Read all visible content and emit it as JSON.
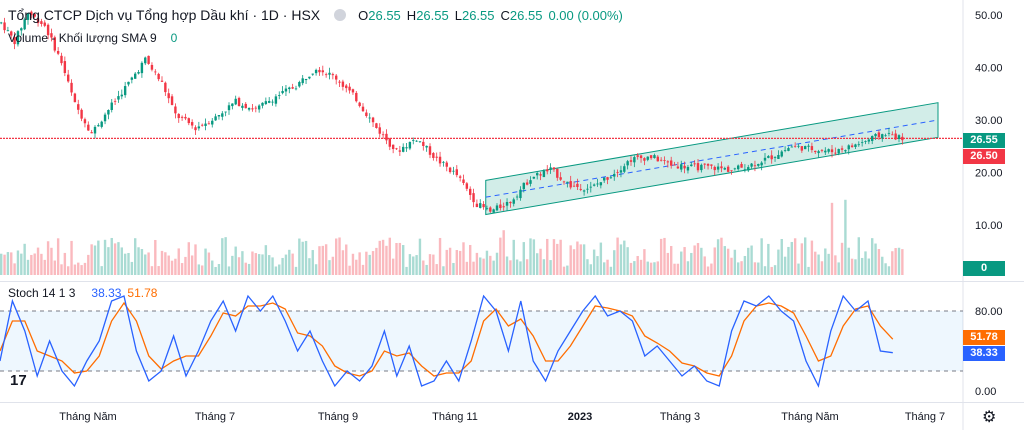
{
  "header": {
    "title": "Tổng CTCP Dịch vụ Tổng hợp Dầu khí · 1D · HSX",
    "ohlc": [
      {
        "k": "O",
        "v": "26.55"
      },
      {
        "k": "H",
        "v": "26.55"
      },
      {
        "k": "L",
        "v": "26.55"
      },
      {
        "k": "C",
        "v": "26.55"
      }
    ],
    "change": "0.00 (0.00%)"
  },
  "volume_legend": {
    "label": "Volume - Khối lượng SMA 9",
    "value": "0"
  },
  "stoch_legend": {
    "label": "Stoch 14 1 3",
    "k_value": "38.33",
    "d_value": "51.78"
  },
  "price_tags": {
    "last": "26.55",
    "hline": "26.50",
    "volume": "0",
    "stoch_d": "51.78",
    "stoch_k": "38.33"
  },
  "colors": {
    "up": "#089981",
    "down": "#f23645",
    "k_line": "#2962ff",
    "d_line": "#ff6d00",
    "channel": "#089981",
    "hline": "#f23645"
  },
  "icons": {
    "logo": "tradingview-logo-icon",
    "settings": "gear-icon",
    "visibility": "eye-icon"
  },
  "chart_data": {
    "type": "candlestick",
    "x_ticks": [
      "Tháng Năm",
      "Tháng 7",
      "Tháng 9",
      "Tháng 11",
      "2023",
      "Tháng 3",
      "Tháng Năm",
      "Tháng 7"
    ],
    "price_axis": {
      "ticks": [
        "50.00",
        "40.00",
        "30.00",
        "20.00",
        "10.00"
      ],
      "range": [
        6,
        54
      ]
    },
    "stoch_axis": {
      "ticks": [
        "80.00",
        "0.00"
      ],
      "range": [
        -5,
        110
      ],
      "band": [
        20,
        80
      ]
    },
    "horizontal_line": 26.5,
    "trend_channel": {
      "upper": [
        [
          18.5,
          33.3
        ]
      ],
      "lower": [
        [
          12.0,
          26.7
        ]
      ],
      "mid": [
        [
          15.3,
          30.0
        ]
      ]
    },
    "price_path": [
      [
        0,
        48.5
      ],
      [
        4,
        45.0
      ],
      [
        8,
        50.5
      ],
      [
        13,
        48.0
      ],
      [
        18,
        41.0
      ],
      [
        22,
        33.0
      ],
      [
        27,
        27.5
      ],
      [
        32,
        32.0
      ],
      [
        38,
        37.0
      ],
      [
        43,
        41.5
      ],
      [
        48,
        37.0
      ],
      [
        52,
        31.0
      ],
      [
        58,
        28.5
      ],
      [
        64,
        30.5
      ],
      [
        70,
        33.5
      ],
      [
        76,
        32.0
      ],
      [
        82,
        34.5
      ],
      [
        88,
        36.5
      ],
      [
        94,
        40.0
      ],
      [
        100,
        38.0
      ],
      [
        106,
        34.0
      ],
      [
        112,
        28.5
      ],
      [
        118,
        24.0
      ],
      [
        124,
        26.5
      ],
      [
        130,
        22.5
      ],
      [
        136,
        19.5
      ],
      [
        142,
        14.0
      ],
      [
        146,
        12.5
      ],
      [
        152,
        14.5
      ],
      [
        158,
        19.0
      ],
      [
        164,
        20.5
      ],
      [
        170,
        17.5
      ],
      [
        176,
        17.0
      ],
      [
        182,
        19.5
      ],
      [
        188,
        22.5
      ],
      [
        194,
        23.0
      ],
      [
        200,
        21.5
      ],
      [
        206,
        21.0
      ],
      [
        212,
        21.0
      ],
      [
        218,
        20.5
      ],
      [
        224,
        21.5
      ],
      [
        230,
        23.0
      ],
      [
        236,
        25.0
      ],
      [
        242,
        24.5
      ],
      [
        248,
        24.0
      ],
      [
        254,
        25.0
      ],
      [
        260,
        26.5
      ],
      [
        264,
        27.5
      ],
      [
        268,
        26.6
      ]
    ],
    "stoch_k": [
      [
        0,
        30
      ],
      [
        4,
        90
      ],
      [
        8,
        60
      ],
      [
        12,
        15
      ],
      [
        16,
        50
      ],
      [
        20,
        20
      ],
      [
        24,
        5
      ],
      [
        28,
        30
      ],
      [
        32,
        50
      ],
      [
        36,
        90
      ],
      [
        40,
        95
      ],
      [
        44,
        40
      ],
      [
        48,
        10
      ],
      [
        52,
        20
      ],
      [
        56,
        55
      ],
      [
        60,
        15
      ],
      [
        64,
        40
      ],
      [
        68,
        70
      ],
      [
        72,
        90
      ],
      [
        76,
        60
      ],
      [
        80,
        95
      ],
      [
        84,
        80
      ],
      [
        88,
        95
      ],
      [
        92,
        70
      ],
      [
        96,
        40
      ],
      [
        100,
        60
      ],
      [
        104,
        30
      ],
      [
        108,
        5
      ],
      [
        112,
        20
      ],
      [
        116,
        10
      ],
      [
        120,
        25
      ],
      [
        124,
        60
      ],
      [
        128,
        15
      ],
      [
        132,
        45
      ],
      [
        136,
        5
      ],
      [
        140,
        10
      ],
      [
        144,
        30
      ],
      [
        148,
        10
      ],
      [
        152,
        50
      ],
      [
        156,
        95
      ],
      [
        160,
        80
      ],
      [
        164,
        40
      ],
      [
        168,
        90
      ],
      [
        172,
        30
      ],
      [
        176,
        10
      ],
      [
        180,
        40
      ],
      [
        184,
        60
      ],
      [
        188,
        80
      ],
      [
        192,
        95
      ],
      [
        196,
        75
      ],
      [
        200,
        80
      ],
      [
        204,
        70
      ],
      [
        208,
        35
      ],
      [
        212,
        45
      ],
      [
        216,
        30
      ],
      [
        220,
        15
      ],
      [
        224,
        25
      ],
      [
        228,
        10
      ],
      [
        232,
        5
      ],
      [
        236,
        60
      ],
      [
        240,
        90
      ],
      [
        244,
        85
      ],
      [
        248,
        95
      ],
      [
        252,
        80
      ],
      [
        256,
        70
      ],
      [
        260,
        30
      ],
      [
        264,
        5
      ],
      [
        268,
        60
      ],
      [
        272,
        95
      ],
      [
        276,
        80
      ],
      [
        280,
        90
      ],
      [
        284,
        40
      ],
      [
        288,
        38.33
      ]
    ],
    "stoch_d": [
      [
        0,
        40
      ],
      [
        4,
        70
      ],
      [
        8,
        70
      ],
      [
        12,
        40
      ],
      [
        16,
        35
      ],
      [
        20,
        30
      ],
      [
        24,
        18
      ],
      [
        28,
        20
      ],
      [
        32,
        35
      ],
      [
        36,
        70
      ],
      [
        40,
        88
      ],
      [
        44,
        70
      ],
      [
        48,
        35
      ],
      [
        52,
        22
      ],
      [
        56,
        30
      ],
      [
        60,
        35
      ],
      [
        64,
        35
      ],
      [
        68,
        55
      ],
      [
        72,
        78
      ],
      [
        76,
        75
      ],
      [
        80,
        85
      ],
      [
        84,
        85
      ],
      [
        88,
        88
      ],
      [
        92,
        82
      ],
      [
        96,
        58
      ],
      [
        100,
        55
      ],
      [
        104,
        45
      ],
      [
        108,
        25
      ],
      [
        112,
        18
      ],
      [
        116,
        15
      ],
      [
        120,
        20
      ],
      [
        124,
        40
      ],
      [
        128,
        35
      ],
      [
        132,
        38
      ],
      [
        136,
        25
      ],
      [
        140,
        15
      ],
      [
        144,
        18
      ],
      [
        148,
        18
      ],
      [
        152,
        30
      ],
      [
        156,
        70
      ],
      [
        160,
        82
      ],
      [
        164,
        65
      ],
      [
        168,
        72
      ],
      [
        172,
        55
      ],
      [
        176,
        30
      ],
      [
        180,
        30
      ],
      [
        184,
        45
      ],
      [
        188,
        65
      ],
      [
        192,
        85
      ],
      [
        196,
        83
      ],
      [
        200,
        80
      ],
      [
        204,
        75
      ],
      [
        208,
        55
      ],
      [
        212,
        48
      ],
      [
        216,
        40
      ],
      [
        220,
        28
      ],
      [
        224,
        25
      ],
      [
        228,
        18
      ],
      [
        232,
        15
      ],
      [
        236,
        35
      ],
      [
        240,
        70
      ],
      [
        244,
        85
      ],
      [
        248,
        88
      ],
      [
        252,
        85
      ],
      [
        256,
        78
      ],
      [
        260,
        55
      ],
      [
        264,
        30
      ],
      [
        268,
        35
      ],
      [
        272,
        65
      ],
      [
        276,
        82
      ],
      [
        280,
        85
      ],
      [
        284,
        65
      ],
      [
        288,
        51.78
      ]
    ]
  }
}
